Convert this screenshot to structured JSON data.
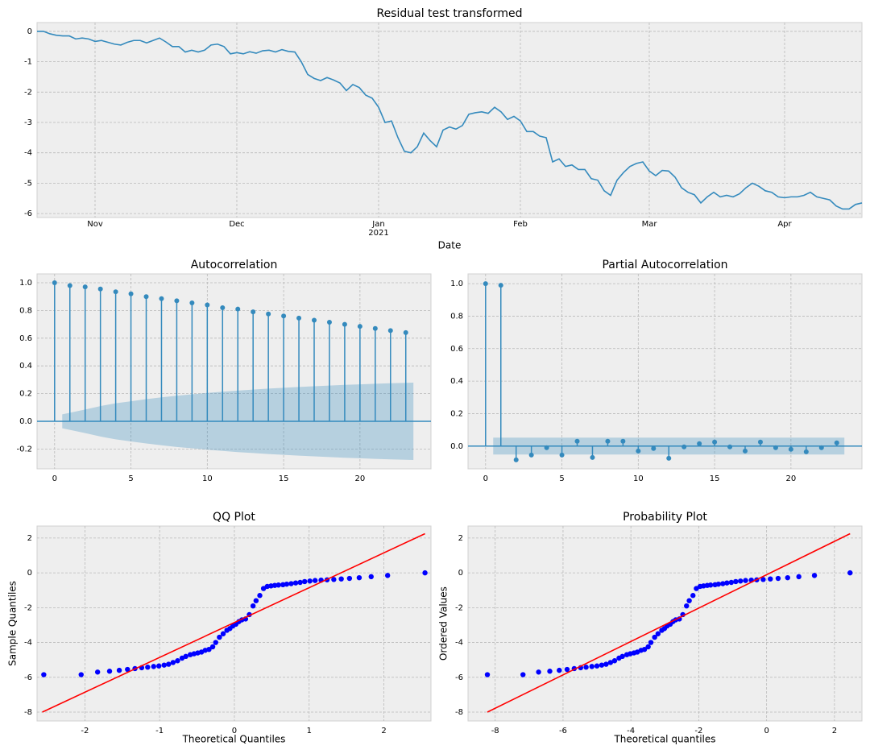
{
  "chart_data": [
    {
      "type": "line",
      "title": "Residual test transformed",
      "xlabel": "Date",
      "color": "#348abd",
      "categories": [
        null,
        null,
        null,
        null,
        null,
        null,
        null,
        null,
        null,
        "Nov",
        null,
        null,
        null,
        null,
        null,
        null,
        null,
        null,
        null,
        null,
        null,
        null,
        null,
        null,
        null,
        null,
        null,
        null,
        null,
        null,
        null,
        "Dec",
        null,
        null,
        null,
        null,
        null,
        null,
        null,
        null,
        null,
        null,
        null,
        null,
        null,
        null,
        null,
        null,
        null,
        null,
        null,
        null,
        null,
        "Jan\n2021",
        null,
        null,
        null,
        null,
        null,
        null,
        null,
        null,
        null,
        null,
        null,
        null,
        null,
        null,
        null,
        null,
        null,
        null,
        null,
        null,
        null,
        "Feb",
        null,
        null,
        null,
        null,
        null,
        null,
        null,
        null,
        null,
        null,
        null,
        null,
        null,
        null,
        null,
        null,
        null,
        null,
        null,
        "Mar",
        null,
        null,
        null,
        null,
        null,
        null,
        null,
        null,
        null,
        null,
        null,
        null,
        null,
        null,
        null,
        null,
        null,
        null,
        null,
        null,
        "Apr",
        null,
        null,
        null,
        null,
        null,
        null,
        null,
        null,
        null,
        null,
        null,
        null
      ],
      "values": [
        0,
        0,
        -0.08,
        -0.13,
        -0.15,
        -0.15,
        -0.25,
        -0.22,
        -0.25,
        -0.33,
        -0.3,
        -0.36,
        -0.42,
        -0.45,
        -0.36,
        -0.3,
        -0.3,
        -0.38,
        -0.3,
        -0.22,
        -0.35,
        -0.5,
        -0.5,
        -0.68,
        -0.62,
        -0.68,
        -0.62,
        -0.45,
        -0.42,
        -0.5,
        -0.74,
        -0.7,
        -0.74,
        -0.67,
        -0.72,
        -0.64,
        -0.62,
        -0.68,
        -0.6,
        -0.66,
        -0.68,
        -1.0,
        -1.42,
        -1.55,
        -1.62,
        -1.52,
        -1.6,
        -1.7,
        -1.95,
        -1.75,
        -1.85,
        -2.1,
        -2.2,
        -2.5,
        -3.0,
        -2.95,
        -3.5,
        -3.95,
        -4.0,
        -3.8,
        -3.35,
        -3.6,
        -3.8,
        -3.25,
        -3.15,
        -3.22,
        -3.1,
        -2.73,
        -2.68,
        -2.65,
        -2.7,
        -2.5,
        -2.65,
        -2.9,
        -2.8,
        -2.95,
        -3.3,
        -3.3,
        -3.45,
        -3.5,
        -4.3,
        -4.2,
        -4.45,
        -4.4,
        -4.55,
        -4.55,
        -4.85,
        -4.9,
        -5.25,
        -5.4,
        -4.9,
        -4.65,
        -4.45,
        -4.35,
        -4.3,
        -4.6,
        -4.75,
        -4.58,
        -4.6,
        -4.8,
        -5.15,
        -5.3,
        -5.38,
        -5.65,
        -5.45,
        -5.3,
        -5.45,
        -5.4,
        -5.45,
        -5.35,
        -5.15,
        -5.0,
        -5.1,
        -5.25,
        -5.3,
        -5.45,
        -5.48,
        -5.45,
        -5.45,
        -5.4,
        -5.3,
        -5.45,
        -5.5,
        -5.55,
        -5.75,
        -5.85,
        -5.85,
        -5.7,
        -5.65
      ],
      "ylim": [
        -6.13,
        0.29
      ],
      "yticks": [
        0,
        -1,
        -2,
        -3,
        -4,
        -5,
        -6
      ],
      "grid": true
    },
    {
      "type": "stem",
      "title": "Autocorrelation",
      "color": "#348abd",
      "band_color": "#348abd",
      "x": [
        0,
        1,
        2,
        3,
        4,
        5,
        6,
        7,
        8,
        9,
        10,
        11,
        12,
        13,
        14,
        15,
        16,
        17,
        18,
        19,
        20,
        21,
        22,
        23
      ],
      "values": [
        1.0,
        0.98,
        0.97,
        0.955,
        0.935,
        0.92,
        0.9,
        0.885,
        0.87,
        0.855,
        0.84,
        0.82,
        0.81,
        0.79,
        0.775,
        0.76,
        0.745,
        0.73,
        0.715,
        0.7,
        0.685,
        0.67,
        0.655,
        0.64
      ],
      "band_x": [
        0.5,
        2,
        3,
        4,
        5,
        6,
        7,
        8,
        9,
        10,
        11,
        12,
        13,
        14,
        15,
        16,
        17,
        18,
        19,
        20,
        21,
        22,
        23.5
      ],
      "band": [
        0.05,
        0.085,
        0.11,
        0.13,
        0.145,
        0.16,
        0.173,
        0.185,
        0.195,
        0.205,
        0.214,
        0.222,
        0.229,
        0.236,
        0.242,
        0.248,
        0.253,
        0.258,
        0.263,
        0.267,
        0.271,
        0.275,
        0.279
      ],
      "xlim": [
        -1.15,
        24.65
      ],
      "xticks": [
        0,
        5,
        10,
        15,
        20
      ],
      "ylim": [
        -0.343,
        1.064
      ],
      "yticks": [
        -0.2,
        {
          "value": 0,
          "label": "0.0"
        },
        0.2,
        0.4,
        0.6,
        0.8,
        {
          "value": 1,
          "label": "1.0"
        }
      ],
      "grid": true
    },
    {
      "type": "stem",
      "title": "Partial Autocorrelation",
      "color": "#348abd",
      "band_color": "#348abd",
      "x": [
        0,
        1,
        2,
        3,
        4,
        5,
        6,
        7,
        8,
        9,
        10,
        11,
        12,
        13,
        14,
        15,
        16,
        17,
        18,
        19,
        20,
        21,
        22,
        23
      ],
      "values": [
        1.0,
        0.99,
        -0.085,
        -0.055,
        -0.01,
        -0.055,
        0.03,
        -0.07,
        0.03,
        0.03,
        -0.03,
        -0.015,
        -0.075,
        -0.005,
        0.015,
        0.025,
        -0.005,
        -0.03,
        0.025,
        -0.01,
        -0.02,
        -0.035,
        -0.01,
        0.02
      ],
      "band_x": [
        0.5,
        23.5
      ],
      "band": [
        0.052,
        0.052
      ],
      "xlim": [
        -1.15,
        24.65
      ],
      "xticks": [
        0,
        5,
        10,
        15,
        20
      ],
      "ylim": [
        -0.14,
        1.06
      ],
      "yticks": [
        {
          "value": 0,
          "label": "0.0"
        },
        0.2,
        0.4,
        0.6,
        0.8,
        {
          "value": 1,
          "label": "1.0"
        }
      ],
      "grid": true
    },
    {
      "type": "scatter",
      "title": "QQ Plot",
      "xlabel": "Theoretical Quantiles",
      "ylabel": "Sample Quantiles",
      "color": "#0000ff",
      "x": [
        -2.55,
        -2.05,
        -1.83,
        -1.67,
        -1.54,
        -1.43,
        -1.33,
        -1.24,
        -1.16,
        -1.08,
        -1.01,
        -0.94,
        -0.88,
        -0.82,
        -0.76,
        -0.7,
        -0.65,
        -0.59,
        -0.54,
        -0.49,
        -0.44,
        -0.39,
        -0.34,
        -0.29,
        -0.25,
        -0.2,
        -0.15,
        -0.1,
        -0.06,
        -0.02,
        0.02,
        0.06,
        0.1,
        0.15,
        0.2,
        0.25,
        0.29,
        0.34,
        0.39,
        0.44,
        0.49,
        0.54,
        0.59,
        0.65,
        0.7,
        0.76,
        0.82,
        0.88,
        0.94,
        1.01,
        1.08,
        1.16,
        1.24,
        1.33,
        1.43,
        1.54,
        1.67,
        1.83,
        2.05,
        2.55
      ],
      "values": [
        -5.85,
        -5.85,
        -5.7,
        -5.65,
        -5.6,
        -5.55,
        -5.5,
        -5.45,
        -5.42,
        -5.38,
        -5.35,
        -5.3,
        -5.25,
        -5.15,
        -5.05,
        -4.9,
        -4.8,
        -4.7,
        -4.65,
        -4.6,
        -4.55,
        -4.45,
        -4.4,
        -4.25,
        -4.0,
        -3.7,
        -3.5,
        -3.3,
        -3.2,
        -3.05,
        -2.95,
        -2.8,
        -2.7,
        -2.65,
        -2.4,
        -1.9,
        -1.6,
        -1.3,
        -0.9,
        -0.78,
        -0.75,
        -0.72,
        -0.7,
        -0.68,
        -0.65,
        -0.62,
        -0.58,
        -0.55,
        -0.5,
        -0.47,
        -0.44,
        -0.42,
        -0.4,
        -0.38,
        -0.35,
        -0.32,
        -0.28,
        -0.22,
        -0.15,
        0
      ],
      "fit_line": {
        "x": [
          -2.57,
          2.55
        ],
        "y": [
          -8.0,
          2.25
        ],
        "color": "#ff0000"
      },
      "xlim": [
        -2.64,
        2.63
      ],
      "xticks": [
        -2,
        -1,
        0,
        1,
        2
      ],
      "ylim": [
        -8.51,
        2.69
      ],
      "yticks": [
        -8,
        -6,
        -4,
        -2,
        0,
        2
      ],
      "grid": true
    },
    {
      "type": "scatter",
      "title": "Probability Plot",
      "xlabel": "Theoretical quantiles",
      "ylabel": "Ordered Values",
      "color": "#0000ff",
      "x": [
        -8.23,
        -7.18,
        -6.72,
        -6.39,
        -6.11,
        -5.88,
        -5.67,
        -5.48,
        -5.32,
        -5.15,
        -5.0,
        -4.86,
        -4.73,
        -4.6,
        -4.48,
        -4.35,
        -4.25,
        -4.12,
        -4.02,
        -3.91,
        -3.81,
        -3.7,
        -3.6,
        -3.49,
        -3.41,
        -3.3,
        -3.2,
        -3.09,
        -3.01,
        -2.93,
        -2.84,
        -2.76,
        -2.68,
        -2.57,
        -2.47,
        -2.36,
        -2.28,
        -2.17,
        -2.07,
        -1.96,
        -1.86,
        -1.75,
        -1.65,
        -1.52,
        -1.42,
        -1.29,
        -1.17,
        -1.04,
        -0.91,
        -0.77,
        -0.62,
        -0.45,
        -0.29,
        -0.1,
        0.11,
        0.34,
        0.62,
        0.95,
        1.41,
        2.46
      ],
      "values": [
        -5.85,
        -5.85,
        -5.7,
        -5.65,
        -5.6,
        -5.55,
        -5.5,
        -5.45,
        -5.42,
        -5.38,
        -5.35,
        -5.3,
        -5.25,
        -5.15,
        -5.05,
        -4.9,
        -4.8,
        -4.7,
        -4.65,
        -4.6,
        -4.55,
        -4.45,
        -4.4,
        -4.25,
        -4.0,
        -3.7,
        -3.5,
        -3.3,
        -3.2,
        -3.05,
        -2.95,
        -2.8,
        -2.7,
        -2.65,
        -2.4,
        -1.9,
        -1.6,
        -1.3,
        -0.9,
        -0.78,
        -0.75,
        -0.72,
        -0.7,
        -0.68,
        -0.65,
        -0.62,
        -0.58,
        -0.55,
        -0.5,
        -0.47,
        -0.44,
        -0.42,
        -0.4,
        -0.38,
        -0.35,
        -0.32,
        -0.28,
        -0.22,
        -0.15,
        0
      ],
      "fit_line": {
        "x": [
          -8.23,
          2.46
        ],
        "y": [
          -8.0,
          2.25
        ],
        "color": "#ff0000"
      },
      "xlim": [
        -8.8,
        2.81
      ],
      "xticks": [
        -8,
        -6,
        -4,
        -2,
        0,
        2
      ],
      "ylim": [
        -8.51,
        2.69
      ],
      "yticks": [
        -8,
        -6,
        -4,
        -2,
        0,
        2
      ],
      "grid": true
    }
  ]
}
